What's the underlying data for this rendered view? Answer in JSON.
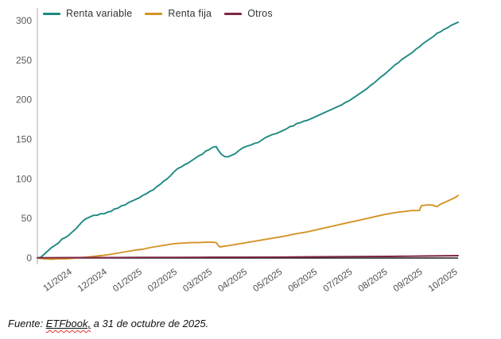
{
  "footer": {
    "prefix": "Fuente: ",
    "source": "ETFbook,",
    "suffix": " a 31 de octubre de 2025."
  },
  "chart_data": {
    "type": "line",
    "title": "",
    "xlabel": "",
    "ylabel": "",
    "x_unit": "months since 2024-11-01",
    "xlim": [
      0,
      12
    ],
    "ylim": [
      0,
      300
    ],
    "yticks": [
      0,
      50,
      100,
      150,
      200,
      250,
      300
    ],
    "x_tick_labels": [
      "11/2024",
      "12/2024",
      "01/2025",
      "02/2025",
      "03/2025",
      "04/2025",
      "05/2025",
      "06/2025",
      "07/2025",
      "08/2025",
      "09/2025",
      "10/2025"
    ],
    "grid": false,
    "legend_position": "top-left",
    "axis_color": "#a8a8a8",
    "baseline_color": "#1f1f1f",
    "series": [
      {
        "name": "Renta variable",
        "color": "#1d8a80",
        "points": [
          [
            0,
            0
          ],
          [
            0.1,
            1
          ],
          [
            0.2,
            5
          ],
          [
            0.3,
            9
          ],
          [
            0.4,
            13
          ],
          [
            0.5,
            16
          ],
          [
            0.6,
            19
          ],
          [
            0.7,
            24
          ],
          [
            0.8,
            26
          ],
          [
            0.9,
            29
          ],
          [
            1.0,
            33
          ],
          [
            1.1,
            37
          ],
          [
            1.2,
            42
          ],
          [
            1.3,
            47
          ],
          [
            1.4,
            50
          ],
          [
            1.5,
            52
          ],
          [
            1.6,
            54
          ],
          [
            1.7,
            54
          ],
          [
            1.8,
            56
          ],
          [
            1.9,
            56
          ],
          [
            2.0,
            58
          ],
          [
            2.1,
            59
          ],
          [
            2.2,
            62
          ],
          [
            2.3,
            63
          ],
          [
            2.4,
            66
          ],
          [
            2.5,
            67
          ],
          [
            2.6,
            70
          ],
          [
            2.7,
            72
          ],
          [
            2.8,
            74
          ],
          [
            2.9,
            76
          ],
          [
            3.0,
            79
          ],
          [
            3.1,
            81
          ],
          [
            3.2,
            84
          ],
          [
            3.3,
            86
          ],
          [
            3.4,
            90
          ],
          [
            3.5,
            93
          ],
          [
            3.6,
            97
          ],
          [
            3.7,
            100
          ],
          [
            3.8,
            104
          ],
          [
            3.9,
            109
          ],
          [
            4.0,
            113
          ],
          [
            4.1,
            115
          ],
          [
            4.2,
            118
          ],
          [
            4.3,
            120
          ],
          [
            4.4,
            123
          ],
          [
            4.5,
            126
          ],
          [
            4.6,
            129
          ],
          [
            4.7,
            131
          ],
          [
            4.8,
            135
          ],
          [
            4.9,
            137
          ],
          [
            5.0,
            140
          ],
          [
            5.1,
            141
          ],
          [
            5.15,
            137
          ],
          [
            5.25,
            131
          ],
          [
            5.35,
            128
          ],
          [
            5.45,
            128
          ],
          [
            5.55,
            130
          ],
          [
            5.65,
            132
          ],
          [
            5.75,
            136
          ],
          [
            5.85,
            139
          ],
          [
            5.95,
            141
          ],
          [
            6.1,
            143
          ],
          [
            6.2,
            145
          ],
          [
            6.3,
            146
          ],
          [
            6.4,
            149
          ],
          [
            6.5,
            152
          ],
          [
            6.6,
            154
          ],
          [
            6.7,
            156
          ],
          [
            6.8,
            157
          ],
          [
            6.9,
            159
          ],
          [
            7.0,
            161
          ],
          [
            7.1,
            163
          ],
          [
            7.2,
            166
          ],
          [
            7.3,
            167
          ],
          [
            7.4,
            170
          ],
          [
            7.5,
            171
          ],
          [
            7.6,
            173
          ],
          [
            7.7,
            174
          ],
          [
            7.8,
            176
          ],
          [
            7.9,
            178
          ],
          [
            8.0,
            180
          ],
          [
            8.1,
            182
          ],
          [
            8.2,
            184
          ],
          [
            8.3,
            186
          ],
          [
            8.4,
            188
          ],
          [
            8.5,
            190
          ],
          [
            8.6,
            192
          ],
          [
            8.7,
            194
          ],
          [
            8.8,
            197
          ],
          [
            8.9,
            199
          ],
          [
            9.0,
            202
          ],
          [
            9.1,
            205
          ],
          [
            9.2,
            208
          ],
          [
            9.3,
            211
          ],
          [
            9.4,
            214
          ],
          [
            9.5,
            218
          ],
          [
            9.6,
            221
          ],
          [
            9.7,
            225
          ],
          [
            9.8,
            229
          ],
          [
            9.9,
            232
          ],
          [
            10.0,
            236
          ],
          [
            10.1,
            240
          ],
          [
            10.2,
            244
          ],
          [
            10.3,
            247
          ],
          [
            10.4,
            251
          ],
          [
            10.5,
            254
          ],
          [
            10.6,
            257
          ],
          [
            10.7,
            260
          ],
          [
            10.8,
            264
          ],
          [
            10.9,
            267
          ],
          [
            11.0,
            271
          ],
          [
            11.1,
            274
          ],
          [
            11.2,
            277
          ],
          [
            11.3,
            280
          ],
          [
            11.4,
            284
          ],
          [
            11.5,
            286
          ],
          [
            11.6,
            289
          ],
          [
            11.7,
            291
          ],
          [
            11.8,
            294
          ],
          [
            11.9,
            296
          ],
          [
            12.0,
            298
          ]
        ]
      },
      {
        "name": "Renta fija",
        "color": "#d49428",
        "points": [
          [
            0,
            0
          ],
          [
            0.2,
            -1
          ],
          [
            0.4,
            -1.5
          ],
          [
            0.6,
            -1
          ],
          [
            0.8,
            -1
          ],
          [
            1.0,
            -0.5
          ],
          [
            1.2,
            0.5
          ],
          [
            1.4,
            1
          ],
          [
            1.6,
            2
          ],
          [
            1.8,
            3
          ],
          [
            2.0,
            4
          ],
          [
            2.2,
            5.5
          ],
          [
            2.4,
            7
          ],
          [
            2.6,
            8.5
          ],
          [
            2.8,
            10
          ],
          [
            3.0,
            11
          ],
          [
            3.2,
            13
          ],
          [
            3.4,
            14.5
          ],
          [
            3.6,
            16
          ],
          [
            3.8,
            17.5
          ],
          [
            4.0,
            18.5
          ],
          [
            4.2,
            19
          ],
          [
            4.4,
            19.5
          ],
          [
            4.6,
            19.5
          ],
          [
            4.8,
            20
          ],
          [
            5.0,
            20
          ],
          [
            5.1,
            19.5
          ],
          [
            5.2,
            14
          ],
          [
            5.35,
            15
          ],
          [
            5.5,
            16
          ],
          [
            5.7,
            17.5
          ],
          [
            5.9,
            19
          ],
          [
            6.1,
            20.5
          ],
          [
            6.3,
            22
          ],
          [
            6.5,
            23.5
          ],
          [
            6.7,
            25
          ],
          [
            6.9,
            26.5
          ],
          [
            7.1,
            28
          ],
          [
            7.3,
            30
          ],
          [
            7.5,
            31.5
          ],
          [
            7.7,
            33
          ],
          [
            7.9,
            35
          ],
          [
            8.1,
            37
          ],
          [
            8.3,
            39
          ],
          [
            8.5,
            41
          ],
          [
            8.7,
            43
          ],
          [
            8.9,
            45
          ],
          [
            9.1,
            47
          ],
          [
            9.3,
            49
          ],
          [
            9.5,
            51
          ],
          [
            9.7,
            53
          ],
          [
            9.9,
            55
          ],
          [
            10.1,
            56.5
          ],
          [
            10.3,
            58
          ],
          [
            10.5,
            59
          ],
          [
            10.7,
            60
          ],
          [
            10.9,
            60
          ],
          [
            10.95,
            66
          ],
          [
            11.1,
            67
          ],
          [
            11.25,
            67
          ],
          [
            11.4,
            65
          ],
          [
            11.5,
            68
          ],
          [
            11.6,
            70
          ],
          [
            11.75,
            73
          ],
          [
            11.9,
            76
          ],
          [
            12.0,
            79
          ]
        ]
      },
      {
        "name": "Otros",
        "color": "#7e2547",
        "points": [
          [
            0,
            0.3
          ],
          [
            1,
            0.5
          ],
          [
            2,
            0.5
          ],
          [
            3,
            0.8
          ],
          [
            4,
            0.8
          ],
          [
            5,
            1
          ],
          [
            6,
            1
          ],
          [
            7,
            1.2
          ],
          [
            8,
            1.5
          ],
          [
            9,
            1.8
          ],
          [
            10,
            2
          ],
          [
            11,
            2.5
          ],
          [
            12,
            3
          ]
        ]
      }
    ]
  }
}
